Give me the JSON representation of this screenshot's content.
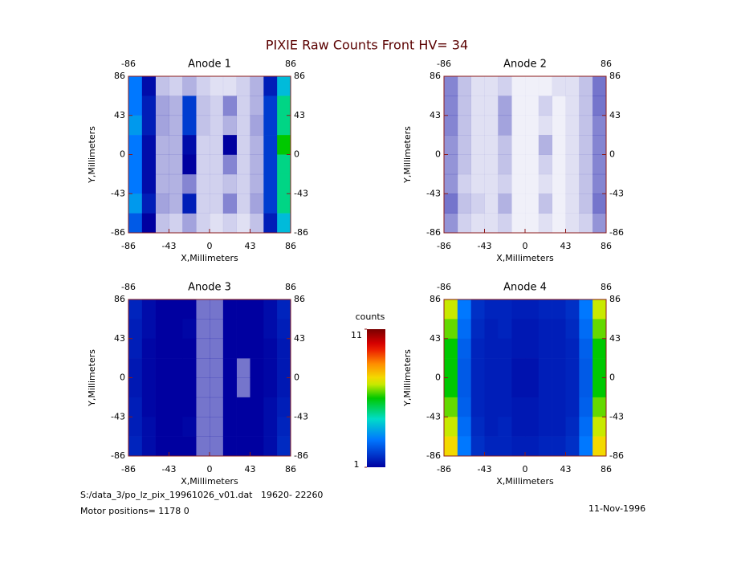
{
  "title": "PIXIE Raw Counts Front HV= 34",
  "chart_data": [
    {
      "type": "heatmap",
      "title": "Anode 1",
      "xlabel": "X,Millimeters",
      "ylabel": "Y,Millimeters",
      "xlim": [
        -86,
        86
      ],
      "ylim": [
        -86,
        86
      ],
      "xticks": [
        -86,
        -43,
        0,
        43,
        86
      ],
      "yticks": [
        -86,
        -43,
        0,
        43,
        86
      ],
      "x2ticks": [
        -86,
        86
      ],
      "y2ticks": [
        -86,
        -43,
        0,
        43,
        86
      ],
      "values": [
        [
          3,
          1.2,
          0.4,
          0.3,
          0.5,
          0.3,
          0.2,
          0.2,
          0.3,
          0.5,
          1.5,
          4
        ],
        [
          3,
          1.5,
          0.6,
          0.5,
          2,
          0.4,
          0.3,
          0.8,
          0.3,
          0.5,
          2,
          5
        ],
        [
          3.5,
          1.5,
          0.6,
          0.5,
          2,
          0.4,
          0.3,
          0.5,
          0.3,
          0.6,
          2,
          5
        ],
        [
          3,
          1.2,
          0.5,
          0.5,
          1.2,
          0.3,
          0.3,
          1,
          0.3,
          0.5,
          2,
          6
        ],
        [
          3,
          1.2,
          0.5,
          0.5,
          1,
          0.3,
          0.3,
          0.8,
          0.3,
          0.5,
          2,
          5
        ],
        [
          3,
          1.2,
          0.5,
          0.5,
          0.8,
          0.3,
          0.3,
          0.4,
          0.3,
          0.5,
          2,
          5
        ],
        [
          3.5,
          1.5,
          0.6,
          0.5,
          1.5,
          0.3,
          0.3,
          0.8,
          0.3,
          0.6,
          2,
          5
        ],
        [
          2.5,
          1,
          0.4,
          0.3,
          0.6,
          0.3,
          0.2,
          0.3,
          0.2,
          0.4,
          1.5,
          4
        ]
      ]
    },
    {
      "type": "heatmap",
      "title": "Anode 2",
      "xlabel": "X,Millimeters",
      "ylabel": "Y,Millimeters",
      "xlim": [
        -86,
        86
      ],
      "ylim": [
        -86,
        86
      ],
      "xticks": [
        -86,
        -43,
        0,
        43,
        86
      ],
      "yticks": [
        -86,
        -43,
        0,
        43,
        86
      ],
      "x2ticks": [
        -86,
        86
      ],
      "y2ticks": [
        -86,
        -43,
        0,
        43,
        86
      ],
      "values": [
        [
          0.8,
          0.4,
          0.2,
          0.2,
          0.3,
          0.1,
          0.1,
          0.1,
          0.2,
          0.2,
          0.4,
          0.9
        ],
        [
          0.8,
          0.4,
          0.2,
          0.2,
          0.6,
          0.1,
          0.1,
          0.3,
          0.1,
          0.2,
          0.4,
          0.9
        ],
        [
          0.8,
          0.4,
          0.2,
          0.2,
          0.6,
          0.1,
          0.1,
          0.2,
          0.1,
          0.2,
          0.4,
          0.8
        ],
        [
          0.7,
          0.4,
          0.2,
          0.2,
          0.4,
          0.1,
          0.1,
          0.5,
          0.1,
          0.2,
          0.4,
          0.8
        ],
        [
          0.7,
          0.4,
          0.2,
          0.2,
          0.4,
          0.1,
          0.1,
          0.3,
          0.1,
          0.2,
          0.4,
          0.8
        ],
        [
          0.7,
          0.3,
          0.2,
          0.2,
          0.3,
          0.1,
          0.1,
          0.2,
          0.1,
          0.2,
          0.4,
          0.8
        ],
        [
          0.9,
          0.4,
          0.3,
          0.2,
          0.5,
          0.1,
          0.1,
          0.4,
          0.1,
          0.2,
          0.4,
          0.9
        ],
        [
          0.7,
          0.3,
          0.2,
          0.2,
          0.3,
          0.1,
          0.1,
          0.2,
          0.1,
          0.2,
          0.3,
          0.7
        ]
      ]
    },
    {
      "type": "heatmap",
      "title": "Anode 3",
      "xlabel": "X,Millimeters",
      "ylabel": "Y,Millimeters",
      "xlim": [
        -86,
        86
      ],
      "ylim": [
        -86,
        86
      ],
      "xticks": [
        -86,
        -43,
        0,
        43,
        86
      ],
      "yticks": [
        -86,
        -43,
        0,
        43,
        86
      ],
      "x2ticks": [
        -86,
        86
      ],
      "y2ticks": [
        -86,
        -43,
        0,
        43,
        86
      ],
      "values": [
        [
          1.6,
          1.2,
          1,
          1,
          1,
          0.9,
          0.9,
          1,
          1,
          1,
          1.2,
          1.6
        ],
        [
          1.5,
          1.2,
          1,
          1,
          1.1,
          0.9,
          0.9,
          1,
          1,
          1,
          1.2,
          1.5
        ],
        [
          1.5,
          1.1,
          1,
          1,
          1,
          0.9,
          0.9,
          1,
          1,
          1,
          1.1,
          1.4
        ],
        [
          1.4,
          1.1,
          1,
          1,
          1,
          0.9,
          0.9,
          1,
          0.9,
          1,
          1.1,
          1.4
        ],
        [
          1.4,
          1.1,
          1,
          1,
          1,
          0.9,
          0.9,
          1,
          0.9,
          1,
          1.1,
          1.4
        ],
        [
          1.5,
          1.1,
          1,
          1,
          1,
          0.9,
          0.9,
          1,
          1,
          1,
          1.2,
          1.5
        ],
        [
          1.5,
          1.2,
          1,
          1,
          1.1,
          0.9,
          0.9,
          1,
          1,
          1,
          1.2,
          1.6
        ],
        [
          1.6,
          1.2,
          1,
          1,
          1,
          0.9,
          0.9,
          1,
          1,
          1,
          1.2,
          1.7
        ]
      ]
    },
    {
      "type": "heatmap",
      "title": "Anode 4",
      "xlabel": "X,Millimeters",
      "ylabel": "Y,Millimeters",
      "xlim": [
        -86,
        86
      ],
      "ylim": [
        -86,
        86
      ],
      "xticks": [
        -86,
        -43,
        0,
        43,
        86
      ],
      "yticks": [
        -86,
        -43,
        0,
        43,
        86
      ],
      "x2ticks": [
        -86,
        86
      ],
      "y2ticks": [
        -86,
        -43,
        0,
        43,
        86
      ],
      "values": [
        [
          7,
          3,
          1.8,
          1.6,
          1.6,
          1.5,
          1.5,
          1.6,
          1.6,
          1.8,
          3,
          7
        ],
        [
          6.5,
          2.8,
          1.7,
          1.5,
          1.6,
          1.4,
          1.4,
          1.5,
          1.5,
          1.7,
          2.8,
          6.5
        ],
        [
          6,
          2.6,
          1.6,
          1.5,
          1.5,
          1.4,
          1.4,
          1.5,
          1.5,
          1.6,
          2.6,
          6
        ],
        [
          6,
          2.5,
          1.6,
          1.5,
          1.5,
          1.3,
          1.3,
          1.5,
          1.5,
          1.6,
          2.5,
          6
        ],
        [
          6,
          2.5,
          1.6,
          1.5,
          1.5,
          1.3,
          1.3,
          1.5,
          1.5,
          1.6,
          2.5,
          6
        ],
        [
          6.5,
          2.6,
          1.6,
          1.5,
          1.5,
          1.4,
          1.4,
          1.5,
          1.5,
          1.6,
          2.6,
          6.5
        ],
        [
          7,
          2.8,
          1.7,
          1.5,
          1.6,
          1.4,
          1.4,
          1.5,
          1.5,
          1.7,
          2.8,
          7
        ],
        [
          7.5,
          3,
          1.8,
          1.6,
          1.6,
          1.5,
          1.5,
          1.6,
          1.6,
          1.8,
          3,
          7.5
        ]
      ]
    }
  ],
  "colorbar": {
    "label": "counts",
    "lim": [
      1,
      11
    ],
    "ticks": [
      1,
      11
    ]
  },
  "file_info": "S:/data_3/po_lz_pix_19961026_v01.dat   19620- 22260",
  "motor_positions": "Motor positions= 1178 0",
  "date": "11-Nov-1996"
}
